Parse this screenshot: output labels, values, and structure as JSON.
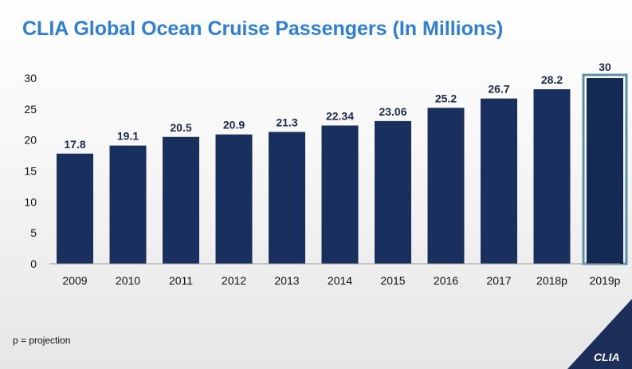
{
  "title": "CLIA Global Ocean Cruise Passengers (In Millions)",
  "footnote": "p = projection",
  "logo_text": "CLIA",
  "colors": {
    "bar": "#19305f",
    "highlight_bar": "#142a55",
    "highlight_frame": "#5c8fa6",
    "title": "#2e7ed6",
    "logo_bg": "#1c2f5a"
  },
  "chart_data": {
    "type": "bar",
    "categories": [
      "2009",
      "2010",
      "2011",
      "2012",
      "2013",
      "2014",
      "2015",
      "2016",
      "2017",
      "2018p",
      "2019p"
    ],
    "values": [
      17.8,
      19.1,
      20.5,
      20.9,
      21.3,
      22.34,
      23.06,
      25.2,
      26.7,
      28.2,
      30
    ],
    "value_labels": [
      "17.8",
      "19.1",
      "20.5",
      "20.9",
      "21.3",
      "22.34",
      "23.06",
      "25.2",
      "26.7",
      "28.2",
      "30"
    ],
    "highlighted_category": "2019p",
    "ylim": [
      0,
      30
    ],
    "yticks": [
      0,
      5,
      10,
      15,
      20,
      25,
      30
    ],
    "title": "CLIA Global Ocean Cruise Passengers (In Millions)",
    "xlabel": "",
    "ylabel": "",
    "grid": false,
    "legend": "none"
  }
}
